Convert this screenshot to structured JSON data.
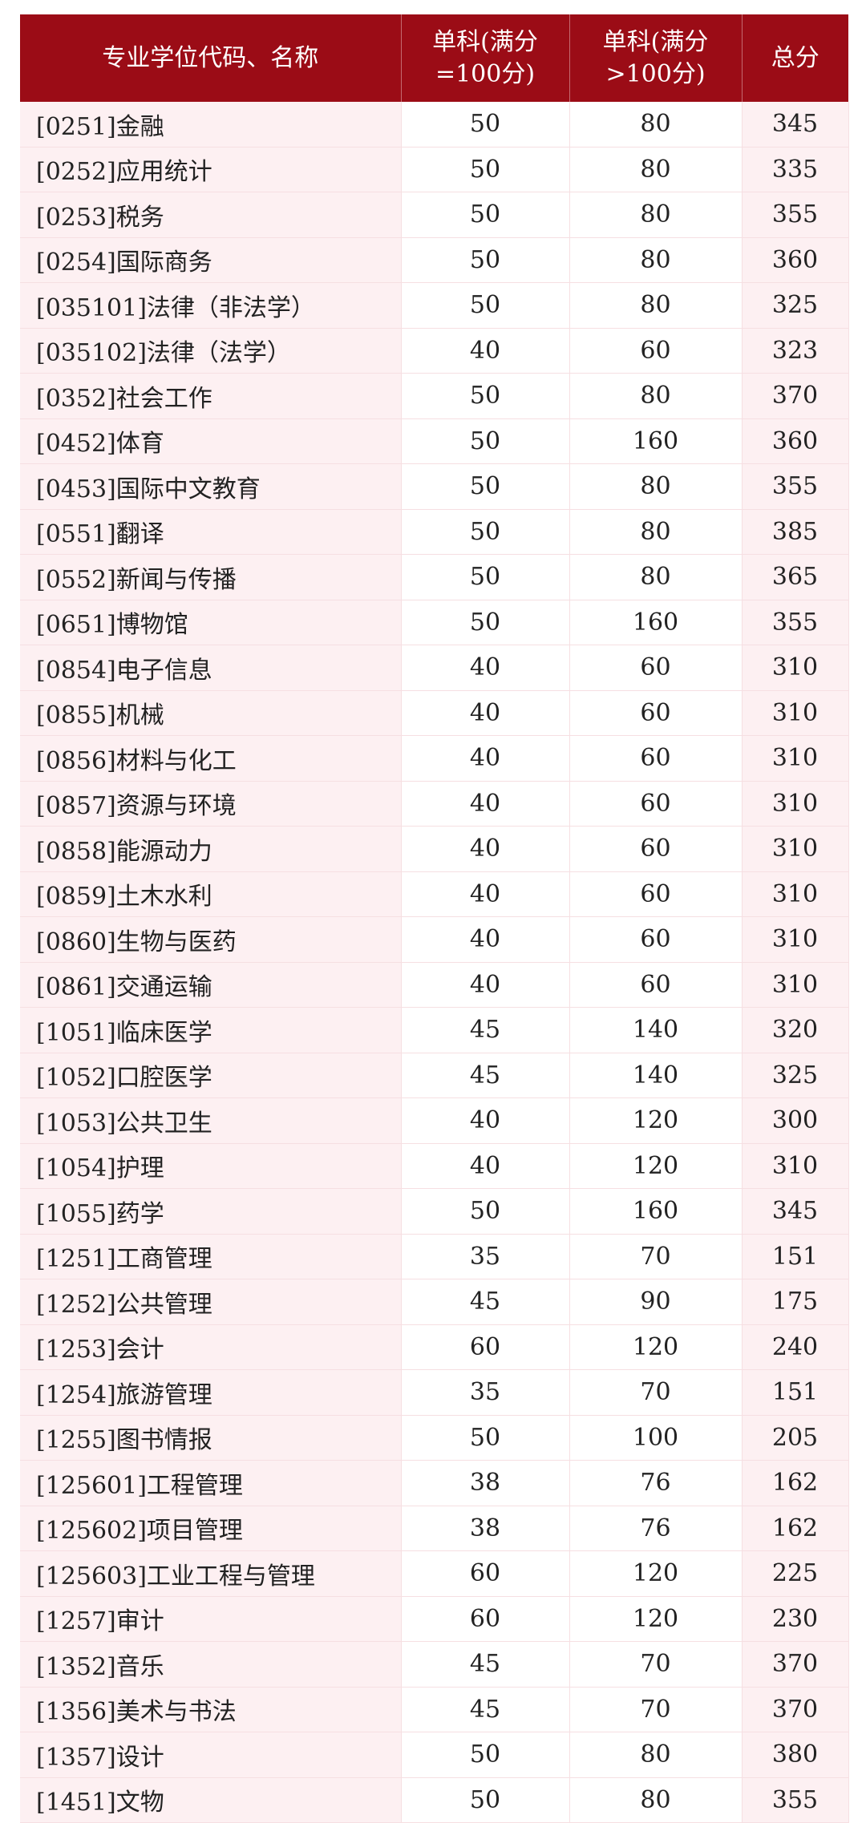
{
  "header": {
    "col1": "专业学位代码、名称",
    "col2_line1": "单科(满分",
    "col2_line2": "=100分)",
    "col3_line1": "单科(满分",
    "col3_line2": ">100分)",
    "col4": "总分"
  },
  "rows": [
    [
      "[0251]金融",
      "50",
      "80",
      "345"
    ],
    [
      "[0252]应用统计",
      "50",
      "80",
      "335"
    ],
    [
      "[0253]税务",
      "50",
      "80",
      "355"
    ],
    [
      "[0254]国际商务",
      "50",
      "80",
      "360"
    ],
    [
      "[035101]法律（非法学）",
      "50",
      "80",
      "325"
    ],
    [
      "[035102]法律（法学）",
      "40",
      "60",
      "323"
    ],
    [
      "[0352]社会工作",
      "50",
      "80",
      "370"
    ],
    [
      "[0452]体育",
      "50",
      "160",
      "360"
    ],
    [
      "[0453]国际中文教育",
      "50",
      "80",
      "355"
    ],
    [
      "[0551]翻译",
      "50",
      "80",
      "385"
    ],
    [
      "[0552]新闻与传播",
      "50",
      "80",
      "365"
    ],
    [
      "[0651]博物馆",
      "50",
      "160",
      "355"
    ],
    [
      "[0854]电子信息",
      "40",
      "60",
      "310"
    ],
    [
      "[0855]机械",
      "40",
      "60",
      "310"
    ],
    [
      "[0856]材料与化工",
      "40",
      "60",
      "310"
    ],
    [
      "[0857]资源与环境",
      "40",
      "60",
      "310"
    ],
    [
      "[0858]能源动力",
      "40",
      "60",
      "310"
    ],
    [
      "[0859]土木水利",
      "40",
      "60",
      "310"
    ],
    [
      "[0860]生物与医药",
      "40",
      "60",
      "310"
    ],
    [
      "[0861]交通运输",
      "40",
      "60",
      "310"
    ],
    [
      "[1051]临床医学",
      "45",
      "140",
      "320"
    ],
    [
      "[1052]口腔医学",
      "45",
      "140",
      "325"
    ],
    [
      "[1053]公共卫生",
      "40",
      "120",
      "300"
    ],
    [
      "[1054]护理",
      "40",
      "120",
      "310"
    ],
    [
      "[1055]药学",
      "50",
      "160",
      "345"
    ],
    [
      "[1251]工商管理",
      "35",
      "70",
      "151"
    ],
    [
      "[1252]公共管理",
      "45",
      "90",
      "175"
    ],
    [
      "[1253]会计",
      "60",
      "120",
      "240"
    ],
    [
      "[1254]旅游管理",
      "35",
      "70",
      "151"
    ],
    [
      "[1255]图书情报",
      "50",
      "100",
      "205"
    ],
    [
      "[125601]工程管理",
      "38",
      "76",
      "162"
    ],
    [
      "[125602]项目管理",
      "38",
      "76",
      "162"
    ],
    [
      "[125603]工业工程与管理",
      "60",
      "120",
      "225"
    ],
    [
      "[1257]审计",
      "60",
      "120",
      "230"
    ],
    [
      "[1352]音乐",
      "45",
      "70",
      "370"
    ],
    [
      "[1356]美术与书法",
      "45",
      "70",
      "370"
    ],
    [
      "[1357]设计",
      "50",
      "80",
      "380"
    ],
    [
      "[1451]文物",
      "50",
      "80",
      "355"
    ]
  ],
  "colors": {
    "header_bg": "#9b0c16",
    "shaded_col_bg": "#fdf0f2"
  }
}
